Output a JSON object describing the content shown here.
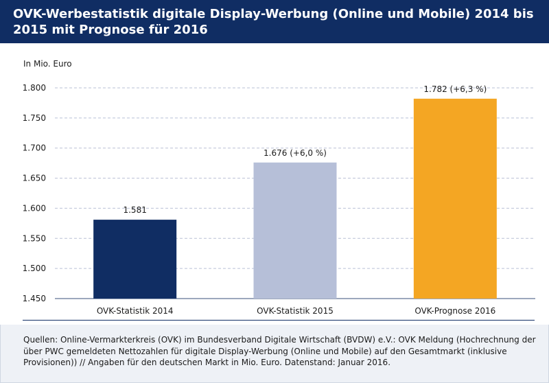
{
  "title": "OVK-Werbestatistik digitale Display-Werbung (Online und Mobile) 2014 bis 2015 mit Prognose für 2016",
  "unit_label": "In Mio. Euro",
  "source_text": "Quellen: Online-Vermarkterkreis (OVK) im Bundesverband Digitale Wirtschaft (BVDW) e.V.: OVK Meldung (Hochrechnung der über PWC gemeldeten Nettozahlen für digitale Display-Werbung (Online und Mobile) auf den Gesamtmarkt (inklusive Provisionen)) // Angaben für den deutschen Markt in Mio. Euro. Datenstand: Januar 2016.",
  "colors": {
    "header": "#102d63",
    "bar_2014": "#102d63",
    "bar_2015": "#b6bfd8",
    "bar_2016": "#f4a623",
    "grid": "#b9c0d6"
  },
  "chart_data": {
    "type": "bar",
    "categories": [
      "OVK-Statistik 2014",
      "OVK-Statistik 2015",
      "OVK-Prognose 2016"
    ],
    "values": [
      1581,
      1676,
      1782
    ],
    "data_labels": [
      "1.581",
      "1.676 (+6,0 %)",
      "1.782 (+6,3 %)"
    ],
    "bar_colors": [
      "#102d63",
      "#b6bfd8",
      "#f4a623"
    ],
    "ylabel": "In Mio. Euro",
    "ylim": [
      1450,
      1800
    ],
    "yticks": [
      1450,
      1500,
      1550,
      1600,
      1650,
      1700,
      1750,
      1800
    ],
    "ytick_labels": [
      "1.450",
      "1.500",
      "1.550",
      "1.600",
      "1.650",
      "1.700",
      "1.750",
      "1.800"
    ],
    "grid": true,
    "legend": "none"
  }
}
